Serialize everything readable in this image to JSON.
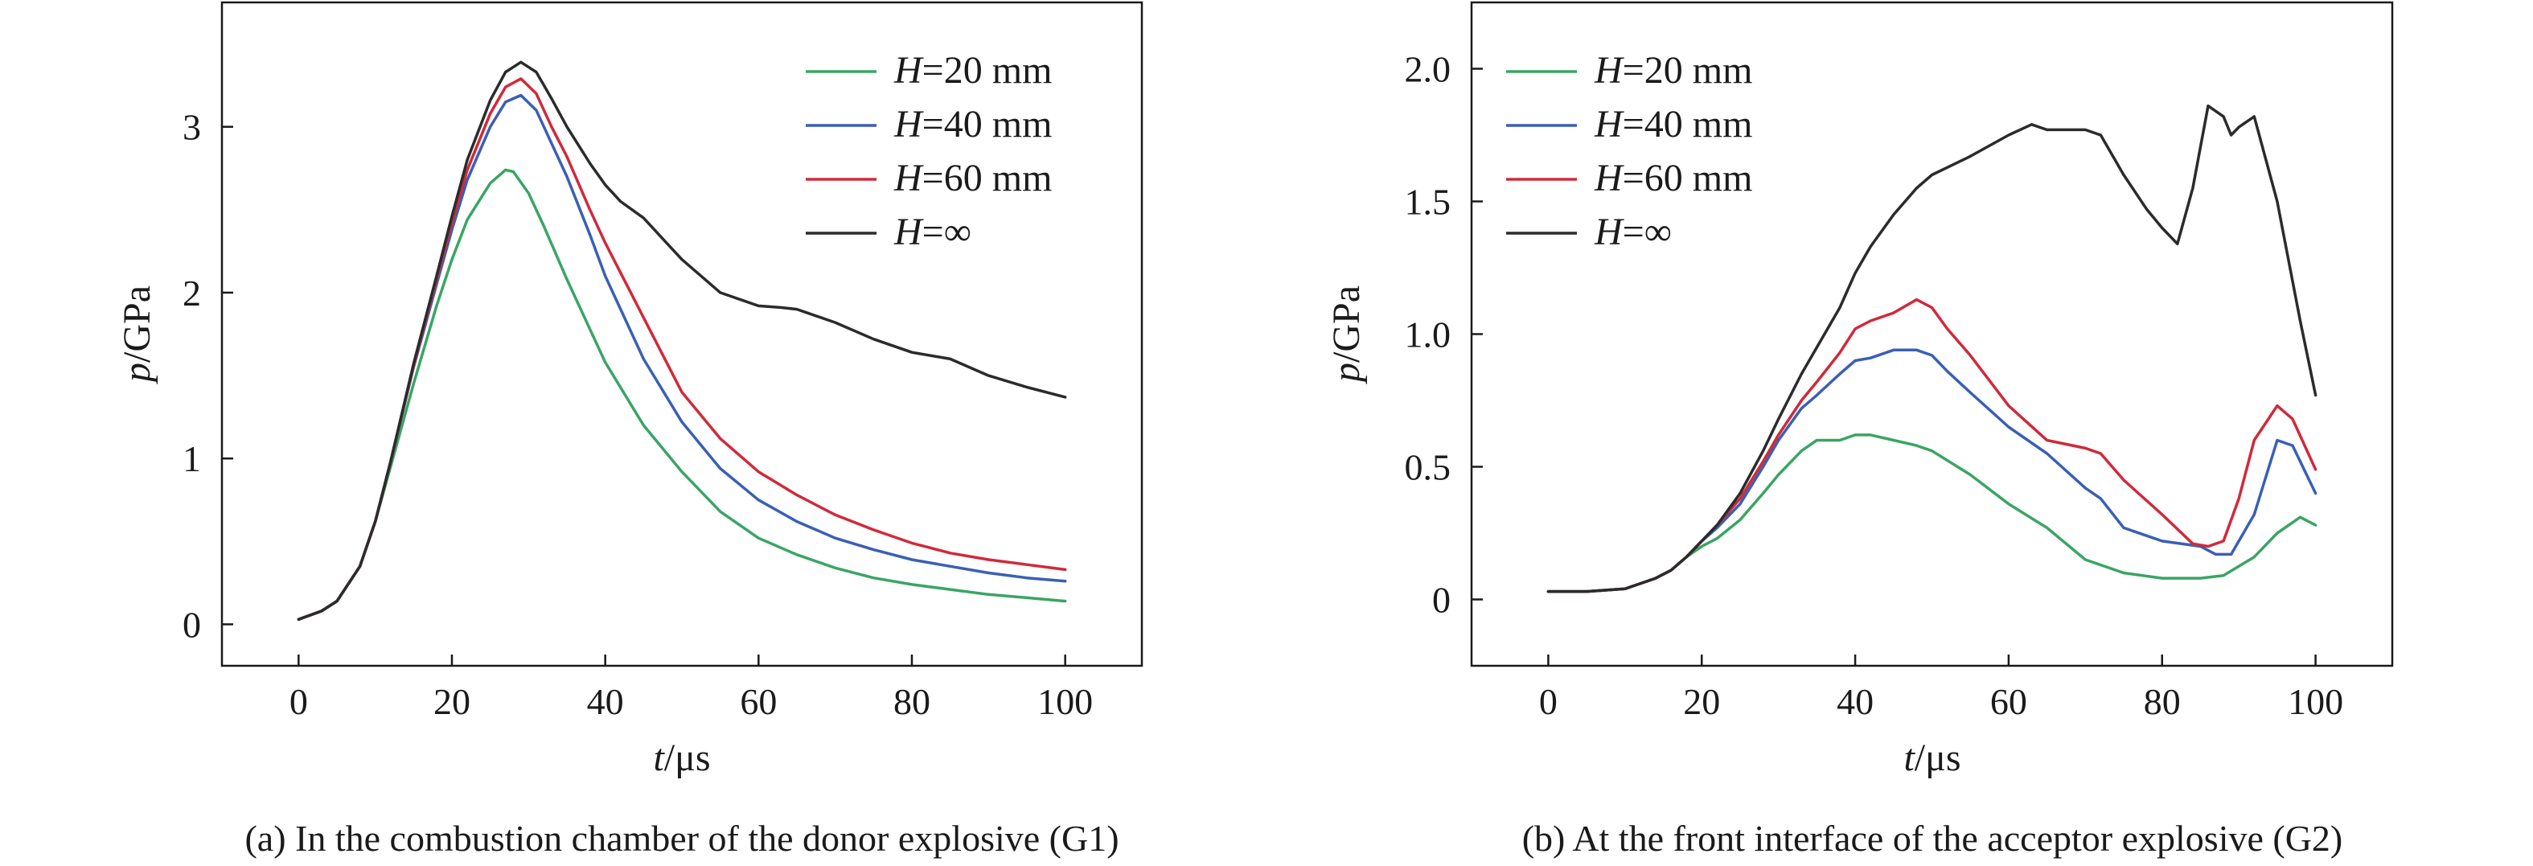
{
  "figure": {
    "panel_a_caption": "(a) In the combustion chamber of the donor explosive (G1)",
    "panel_b_caption": "(b) At the front interface of the acceptor explosive (G2)"
  },
  "chart_data": [
    {
      "type": "line",
      "title": "",
      "caption": "(a) In the combustion chamber of the donor explosive (G1)",
      "xlabel_var": "t",
      "xlabel_unit": "/μs",
      "ylabel_var": "p",
      "ylabel_unit": "/GPa",
      "xlim": [
        -10,
        110
      ],
      "ylim": [
        -0.25,
        3.75
      ],
      "xticks": [
        0,
        20,
        40,
        60,
        80,
        100
      ],
      "xtick_labels": [
        "0",
        "20",
        "40",
        "60",
        "80",
        "100"
      ],
      "yticks": [
        0,
        1,
        2,
        3
      ],
      "ytick_labels": [
        "0",
        "1",
        "2",
        "3"
      ],
      "grid": false,
      "legend_position": "top-right",
      "series": [
        {
          "name_var": "H",
          "name_rest": "=20 mm",
          "color": "#3aa564",
          "x": [
            0,
            3,
            5,
            8,
            10,
            12,
            15,
            18,
            20,
            22,
            25,
            27,
            28,
            30,
            32,
            35,
            38,
            40,
            45,
            50,
            55,
            60,
            65,
            70,
            75,
            80,
            85,
            90,
            95,
            100
          ],
          "y": [
            0.03,
            0.08,
            0.14,
            0.35,
            0.62,
            0.95,
            1.45,
            1.92,
            2.2,
            2.44,
            2.66,
            2.74,
            2.73,
            2.6,
            2.4,
            2.08,
            1.78,
            1.58,
            1.2,
            0.92,
            0.68,
            0.52,
            0.42,
            0.34,
            0.28,
            0.24,
            0.21,
            0.18,
            0.16,
            0.14
          ]
        },
        {
          "name_var": "H",
          "name_rest": "=40 mm",
          "color": "#3a5fb5",
          "x": [
            0,
            3,
            5,
            8,
            10,
            12,
            15,
            18,
            20,
            22,
            25,
            27,
            29,
            31,
            33,
            35,
            38,
            40,
            45,
            50,
            55,
            60,
            65,
            70,
            75,
            80,
            85,
            90,
            95,
            100
          ],
          "y": [
            0.03,
            0.08,
            0.14,
            0.35,
            0.62,
            0.98,
            1.55,
            2.05,
            2.38,
            2.68,
            3.0,
            3.15,
            3.19,
            3.1,
            2.9,
            2.7,
            2.35,
            2.1,
            1.6,
            1.22,
            0.94,
            0.75,
            0.62,
            0.52,
            0.45,
            0.39,
            0.35,
            0.31,
            0.28,
            0.26
          ]
        },
        {
          "name_var": "H",
          "name_rest": "=60 mm",
          "color": "#d02a3a",
          "x": [
            0,
            3,
            5,
            8,
            10,
            12,
            15,
            18,
            20,
            22,
            25,
            27,
            29,
            31,
            33,
            35,
            38,
            40,
            45,
            50,
            55,
            60,
            65,
            70,
            75,
            80,
            85,
            90,
            95,
            100
          ],
          "y": [
            0.03,
            0.08,
            0.14,
            0.35,
            0.62,
            0.98,
            1.56,
            2.08,
            2.42,
            2.74,
            3.08,
            3.24,
            3.29,
            3.2,
            3.0,
            2.82,
            2.5,
            2.3,
            1.85,
            1.4,
            1.12,
            0.92,
            0.78,
            0.66,
            0.57,
            0.49,
            0.43,
            0.39,
            0.36,
            0.33
          ]
        },
        {
          "name_var": "H",
          "name_rest": "=∞",
          "color": "#2b2b2b",
          "x": [
            0,
            3,
            5,
            8,
            10,
            12,
            15,
            18,
            20,
            22,
            25,
            27,
            29,
            31,
            33,
            35,
            38,
            40,
            42,
            45,
            48,
            50,
            55,
            60,
            63,
            65,
            70,
            75,
            80,
            85,
            90,
            95,
            100
          ],
          "y": [
            0.03,
            0.08,
            0.14,
            0.35,
            0.62,
            0.98,
            1.57,
            2.1,
            2.46,
            2.8,
            3.16,
            3.33,
            3.39,
            3.33,
            3.17,
            3.0,
            2.78,
            2.65,
            2.55,
            2.45,
            2.3,
            2.2,
            2.0,
            1.92,
            1.91,
            1.9,
            1.82,
            1.72,
            1.64,
            1.6,
            1.5,
            1.43,
            1.37
          ]
        }
      ]
    },
    {
      "type": "line",
      "title": "",
      "caption": "(b) At the front interface of the acceptor explosive (G2)",
      "xlabel_var": "t",
      "xlabel_unit": "/μs",
      "ylabel_var": "p",
      "ylabel_unit": "/GPa",
      "xlim": [
        -10,
        110
      ],
      "ylim": [
        -0.25,
        2.25
      ],
      "xticks": [
        0,
        20,
        40,
        60,
        80,
        100
      ],
      "xtick_labels": [
        "0",
        "20",
        "40",
        "60",
        "80",
        "100"
      ],
      "yticks": [
        0,
        0.5,
        1.0,
        1.5,
        2.0
      ],
      "ytick_labels": [
        "0",
        "0.5",
        "1.0",
        "1.5",
        "2.0"
      ],
      "grid": false,
      "legend_position": "top-left",
      "series": [
        {
          "name_var": "H",
          "name_rest": "=20 mm",
          "color": "#3aa564",
          "x": [
            0,
            5,
            10,
            14,
            16,
            18,
            20,
            22,
            25,
            28,
            30,
            33,
            35,
            38,
            40,
            42,
            45,
            48,
            50,
            55,
            60,
            65,
            70,
            75,
            80,
            85,
            88,
            92,
            95,
            98,
            100
          ],
          "y": [
            0.03,
            0.03,
            0.04,
            0.08,
            0.11,
            0.16,
            0.2,
            0.23,
            0.3,
            0.4,
            0.47,
            0.56,
            0.6,
            0.6,
            0.62,
            0.62,
            0.6,
            0.58,
            0.56,
            0.47,
            0.36,
            0.27,
            0.15,
            0.1,
            0.08,
            0.08,
            0.09,
            0.16,
            0.25,
            0.31,
            0.28
          ]
        },
        {
          "name_var": "H",
          "name_rest": "=40 mm",
          "color": "#3a5fb5",
          "x": [
            0,
            5,
            10,
            14,
            16,
            18,
            20,
            22,
            25,
            28,
            30,
            33,
            35,
            38,
            40,
            42,
            45,
            48,
            50,
            52,
            55,
            60,
            65,
            70,
            72,
            75,
            80,
            85,
            87,
            89,
            92,
            95,
            97,
            100
          ],
          "y": [
            0.03,
            0.03,
            0.04,
            0.08,
            0.11,
            0.16,
            0.22,
            0.27,
            0.36,
            0.5,
            0.6,
            0.72,
            0.77,
            0.85,
            0.9,
            0.91,
            0.94,
            0.94,
            0.92,
            0.86,
            0.78,
            0.65,
            0.55,
            0.42,
            0.38,
            0.27,
            0.22,
            0.2,
            0.17,
            0.17,
            0.32,
            0.6,
            0.58,
            0.4
          ]
        },
        {
          "name_var": "H",
          "name_rest": "=60 mm",
          "color": "#d02a3a",
          "x": [
            0,
            5,
            10,
            14,
            16,
            18,
            20,
            22,
            25,
            28,
            30,
            33,
            35,
            38,
            40,
            42,
            45,
            48,
            50,
            52,
            55,
            60,
            65,
            70,
            72,
            75,
            80,
            84,
            86,
            88,
            90,
            92,
            95,
            97,
            100
          ],
          "y": [
            0.03,
            0.03,
            0.04,
            0.08,
            0.11,
            0.16,
            0.22,
            0.28,
            0.38,
            0.52,
            0.62,
            0.75,
            0.82,
            0.93,
            1.02,
            1.05,
            1.08,
            1.13,
            1.1,
            1.02,
            0.92,
            0.73,
            0.6,
            0.57,
            0.55,
            0.45,
            0.32,
            0.21,
            0.2,
            0.22,
            0.38,
            0.6,
            0.73,
            0.68,
            0.49
          ]
        },
        {
          "name_var": "H",
          "name_rest": "=∞",
          "color": "#2b2b2b",
          "x": [
            0,
            5,
            10,
            14,
            16,
            18,
            20,
            22,
            25,
            28,
            30,
            33,
            35,
            38,
            40,
            42,
            45,
            48,
            50,
            55,
            60,
            63,
            65,
            70,
            72,
            75,
            78,
            80,
            82,
            84,
            86,
            88,
            89,
            90,
            92,
            95,
            98,
            100
          ],
          "y": [
            0.03,
            0.03,
            0.04,
            0.08,
            0.11,
            0.16,
            0.22,
            0.28,
            0.4,
            0.56,
            0.68,
            0.85,
            0.95,
            1.1,
            1.23,
            1.33,
            1.45,
            1.55,
            1.6,
            1.67,
            1.75,
            1.79,
            1.77,
            1.77,
            1.75,
            1.6,
            1.47,
            1.4,
            1.34,
            1.55,
            1.86,
            1.82,
            1.75,
            1.78,
            1.82,
            1.5,
            1.05,
            0.77
          ]
        }
      ]
    }
  ]
}
